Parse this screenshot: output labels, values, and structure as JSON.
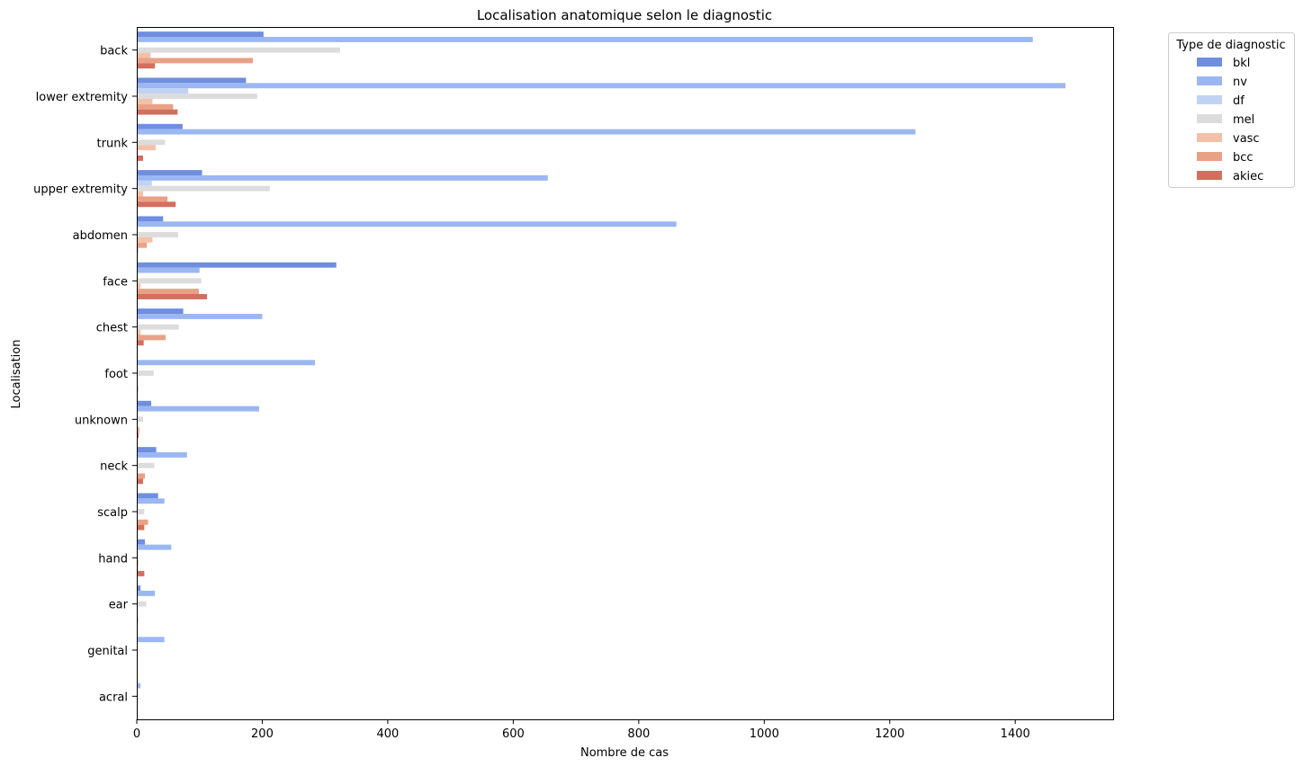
{
  "chart_data": {
    "type": "bar",
    "orientation": "horizontal",
    "title": "Localisation anatomique selon le diagnostic",
    "xlabel": "Nombre de cas",
    "ylabel": "Localisation",
    "xlim": [
      0,
      1556
    ],
    "xticks": [
      "0",
      "200",
      "400",
      "600",
      "800",
      "1000",
      "1200",
      "1400"
    ],
    "grid": false,
    "legend_title": "Type de diagnostic",
    "legend_placement": "outside-top-right",
    "categories": [
      "back",
      "lower extremity",
      "trunk",
      "upper extremity",
      "abdomen",
      "face",
      "chest",
      "foot",
      "unknown",
      "neck",
      "scalp",
      "hand",
      "ear",
      "genital",
      "acral"
    ],
    "series": [
      {
        "name": "bkl",
        "color": "#6f8ee0",
        "values": [
          202,
          174,
          73,
          104,
          42,
          318,
          74,
          0,
          23,
          31,
          34,
          13,
          6,
          0,
          0
        ]
      },
      {
        "name": "nv",
        "color": "#9bb7f2",
        "values": [
          1428,
          1480,
          1241,
          655,
          860,
          100,
          200,
          284,
          195,
          80,
          44,
          55,
          29,
          44,
          6
        ]
      },
      {
        "name": "df",
        "color": "#c0d3f5",
        "values": [
          0,
          82,
          0,
          24,
          0,
          0,
          0,
          0,
          0,
          0,
          0,
          0,
          0,
          0,
          0
        ]
      },
      {
        "name": "mel",
        "color": "#dcdcdc",
        "values": [
          324,
          192,
          45,
          212,
          66,
          103,
          67,
          27,
          10,
          28,
          12,
          2,
          15,
          0,
          0
        ]
      },
      {
        "name": "vasc",
        "color": "#f2c1aa",
        "values": [
          22,
          25,
          30,
          10,
          25,
          6,
          6,
          0,
          0,
          0,
          0,
          3,
          0,
          0,
          0
        ]
      },
      {
        "name": "bcc",
        "color": "#e9a186",
        "values": [
          185,
          58,
          0,
          49,
          16,
          99,
          46,
          0,
          4,
          13,
          18,
          2,
          0,
          0,
          0
        ]
      },
      {
        "name": "akiec",
        "color": "#d46e5e",
        "values": [
          29,
          65,
          10,
          62,
          2,
          112,
          11,
          2,
          3,
          10,
          12,
          12,
          2,
          0,
          0
        ]
      }
    ]
  }
}
